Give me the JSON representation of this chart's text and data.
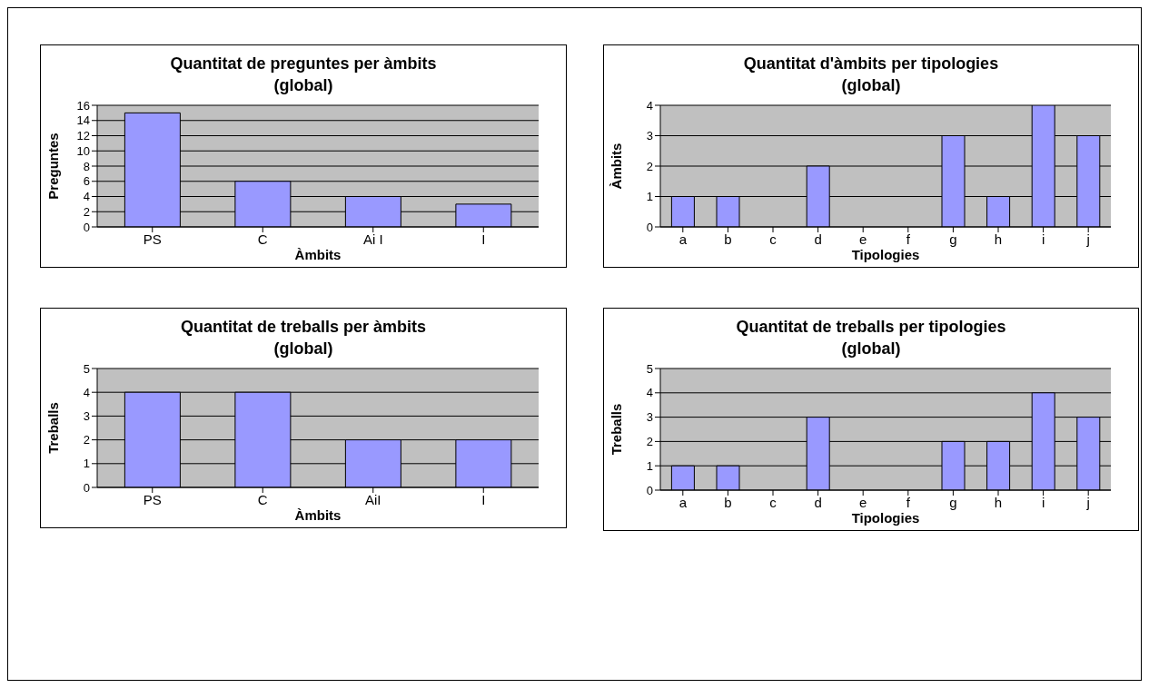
{
  "chart_data": [
    {
      "type": "bar",
      "title": "Quantitat de preguntes per àmbits",
      "subtitle": "(global)",
      "xlabel": "Àmbits",
      "ylabel": "Preguntes",
      "categories": [
        "PS",
        "C",
        "Ai I",
        "I"
      ],
      "series": [
        {
          "color": "#9999ff",
          "values": [
            15,
            6,
            4,
            3
          ]
        }
      ],
      "ylim": [
        0,
        16
      ],
      "yticks": [
        0,
        2,
        4,
        6,
        8,
        10,
        12,
        14,
        16
      ],
      "grid": "y"
    },
    {
      "type": "bar",
      "title": "Quantitat d'àmbits per tipologies",
      "subtitle": "(global)",
      "xlabel": "Tipologies",
      "ylabel": "Àmbits",
      "categories": [
        "a",
        "b",
        "c",
        "d",
        "e",
        "f",
        "g",
        "h",
        "i",
        "j"
      ],
      "series": [
        {
          "color": "#9999ff",
          "values": [
            1,
            1,
            0,
            2,
            0,
            0,
            3,
            1,
            4,
            3
          ]
        }
      ],
      "ylim": [
        0,
        4
      ],
      "yticks": [
        0,
        1,
        2,
        3,
        4
      ],
      "grid": "y"
    },
    {
      "type": "bar",
      "title": "Quantitat de treballs per àmbits",
      "subtitle": "(global)",
      "xlabel": "Àmbits",
      "ylabel": "Treballs",
      "categories": [
        "PS",
        "C",
        "AiI",
        "I"
      ],
      "series": [
        {
          "color": "#9999ff",
          "values": [
            4,
            4,
            2,
            2
          ]
        }
      ],
      "ylim": [
        0,
        5
      ],
      "yticks": [
        0,
        1,
        2,
        3,
        4,
        5
      ],
      "grid": "y"
    },
    {
      "type": "bar",
      "title": "Quantitat de treballs per tipologies",
      "subtitle": "(global)",
      "xlabel": "Tipologies",
      "ylabel": "Treballs",
      "categories": [
        "a",
        "b",
        "c",
        "d",
        "e",
        "f",
        "g",
        "h",
        "i",
        "j"
      ],
      "series": [
        {
          "color": "#9999ff",
          "values": [
            1,
            1,
            0,
            3,
            0,
            0,
            2,
            2,
            4,
            3
          ]
        }
      ],
      "ylim": [
        0,
        5
      ],
      "yticks": [
        0,
        1,
        2,
        3,
        4,
        5
      ],
      "grid": "y"
    }
  ]
}
